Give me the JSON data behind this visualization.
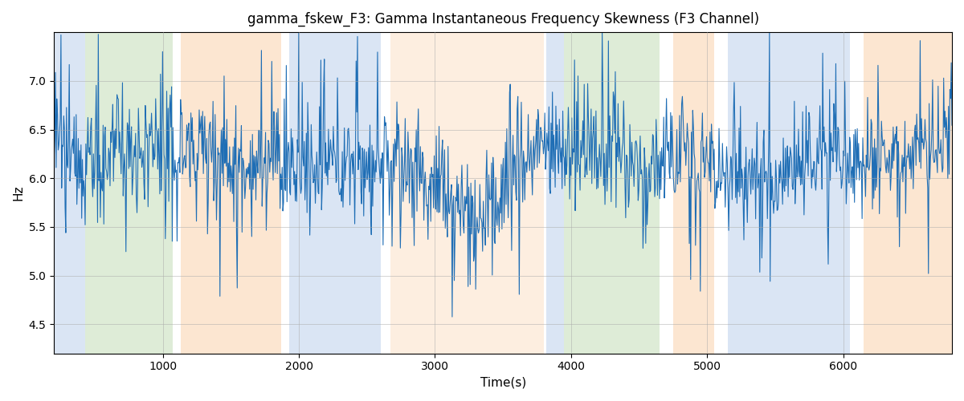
{
  "title": "gamma_fskew_F3: Gamma Instantaneous Frequency Skewness (F3 Channel)",
  "xlabel": "Time(s)",
  "ylabel": "Hz",
  "xlim": [
    200,
    6800
  ],
  "ylim": [
    4.2,
    7.5
  ],
  "line_color": "#1f6eb5",
  "line_width": 0.8,
  "bg_color": "white",
  "grid_color": "#aaaaaa",
  "title_fontsize": 12,
  "axis_fontsize": 11,
  "bands": [
    {
      "start": 200,
      "end": 430,
      "color": "#aec6e8",
      "alpha": 0.45
    },
    {
      "start": 430,
      "end": 1070,
      "color": "#b6d7a8",
      "alpha": 0.45
    },
    {
      "start": 1130,
      "end": 1870,
      "color": "#f9c89b",
      "alpha": 0.45
    },
    {
      "start": 1930,
      "end": 2600,
      "color": "#aec6e8",
      "alpha": 0.45
    },
    {
      "start": 2670,
      "end": 3800,
      "color": "#f9c89b",
      "alpha": 0.3
    },
    {
      "start": 3820,
      "end": 3950,
      "color": "#aec6e8",
      "alpha": 0.45
    },
    {
      "start": 3950,
      "end": 4650,
      "color": "#b6d7a8",
      "alpha": 0.45
    },
    {
      "start": 4750,
      "end": 5050,
      "color": "#f9c89b",
      "alpha": 0.45
    },
    {
      "start": 5150,
      "end": 6050,
      "color": "#aec6e8",
      "alpha": 0.45
    },
    {
      "start": 6150,
      "end": 6800,
      "color": "#f9c89b",
      "alpha": 0.45
    }
  ],
  "seed": 12345,
  "n_points": 1300,
  "t_start": 200,
  "t_end": 6800
}
